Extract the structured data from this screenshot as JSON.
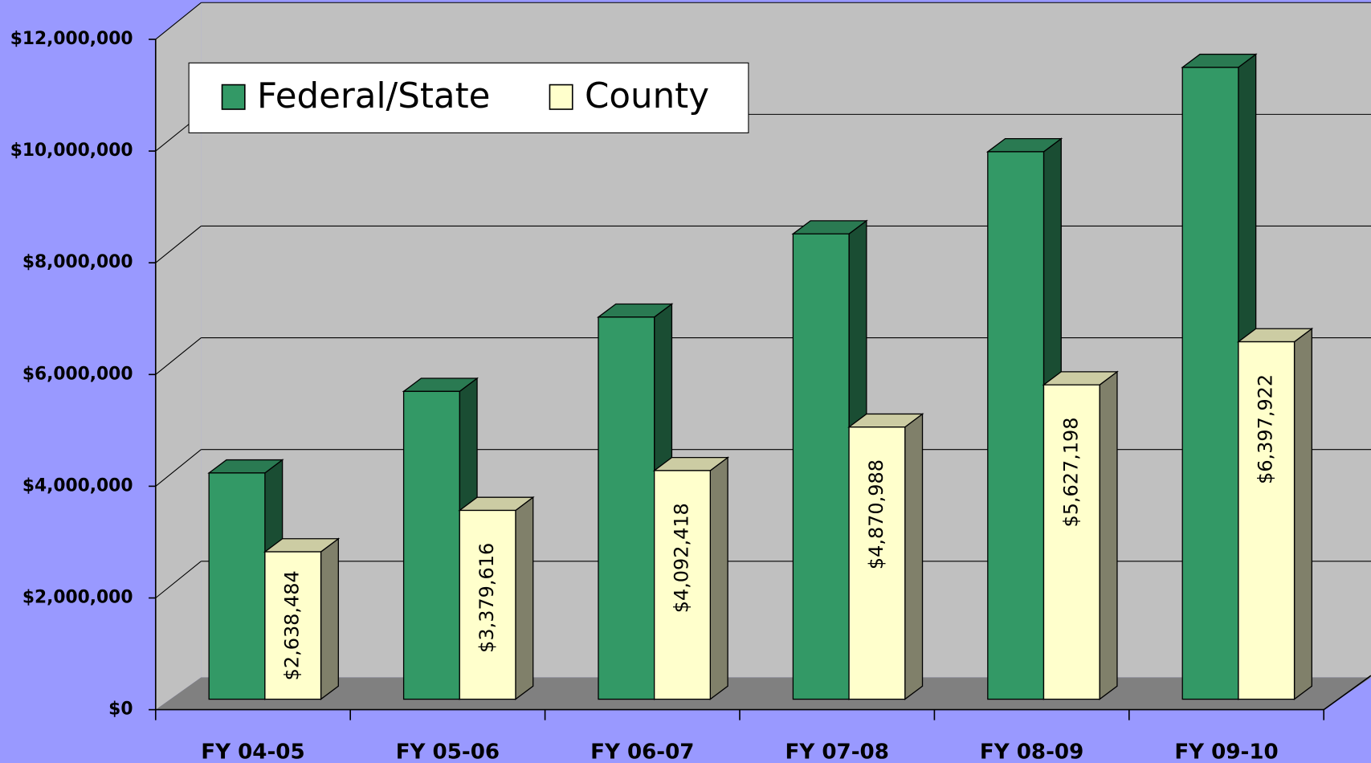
{
  "chart_data": {
    "type": "bar3d",
    "categories": [
      "FY 04-05",
      "FY 05-06",
      "FY 06-07",
      "FY 07-08",
      "FY 08-09",
      "FY 09-10"
    ],
    "series": [
      {
        "name": "Federal/State",
        "color": "#339966",
        "values": [
          4050000,
          5510000,
          6840000,
          8330000,
          9800000,
          11310000
        ]
      },
      {
        "name": "County",
        "color": "#ffffcc",
        "values": [
          2638484,
          3379616,
          4092418,
          4870988,
          5627198,
          6397922
        ],
        "value_labels": [
          "$2,638,484",
          "$3,379,616",
          "$4,092,418",
          "$4,870,988",
          "$5,627,198",
          "$6,397,922"
        ]
      }
    ],
    "ylim": [
      0,
      12000000
    ],
    "yticks": [
      {
        "value": 0,
        "label": "$0"
      },
      {
        "value": 2000000,
        "label": "$2,000,000"
      },
      {
        "value": 4000000,
        "label": "$4,000,000"
      },
      {
        "value": 6000000,
        "label": "$6,000,000"
      },
      {
        "value": 8000000,
        "label": "$8,000,000"
      },
      {
        "value": 10000000,
        "label": "$10,000,000"
      },
      {
        "value": 12000000,
        "label": "$12,000,000"
      }
    ],
    "grid": true,
    "legend": "top-left"
  }
}
